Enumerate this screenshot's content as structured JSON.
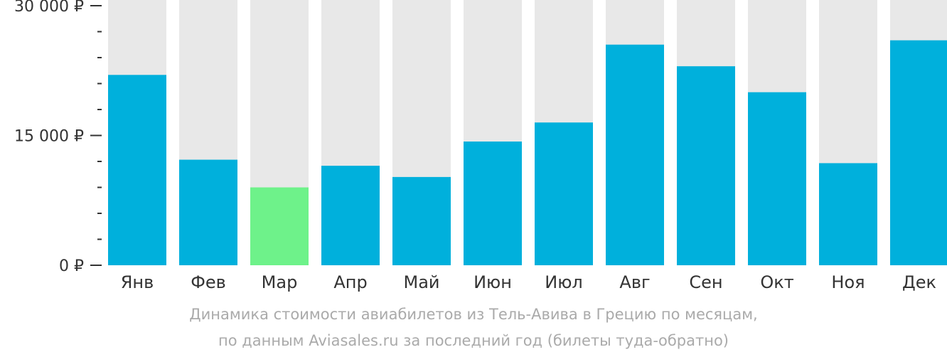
{
  "chart_data": {
    "type": "bar",
    "categories": [
      "Янв",
      "Фев",
      "Мар",
      "Апр",
      "Май",
      "Июн",
      "Июл",
      "Авг",
      "Сен",
      "Окт",
      "Ноя",
      "Дек"
    ],
    "values": [
      22000,
      12200,
      9000,
      11500,
      10200,
      14300,
      16500,
      25500,
      23000,
      20000,
      11800,
      26000
    ],
    "ylim": [
      0,
      30000
    ],
    "y_ticks": [
      {
        "value": 0,
        "label": "0 ₽"
      },
      {
        "value": 15000,
        "label": "15 000 ₽"
      },
      {
        "value": 30000,
        "label": "30 000 ₽"
      }
    ],
    "y_minor_ticks": [
      3000,
      6000,
      9000,
      12000,
      18000,
      21000,
      24000,
      27000
    ],
    "highlight_index": 2,
    "grid": false,
    "caption_line_1": "Динамика стоимости авиабилетов из Тель-Авива в Грецию по месяцам,",
    "caption_line_2": "по данным Aviasales.ru за последний год (билеты туда-обратно)",
    "colors": {
      "bar": "#00b0dc",
      "highlight": "#6ef28a",
      "track": "#e8e8e8",
      "axis": "#333333",
      "text": "#333333",
      "caption": "#aaaaaa"
    }
  }
}
